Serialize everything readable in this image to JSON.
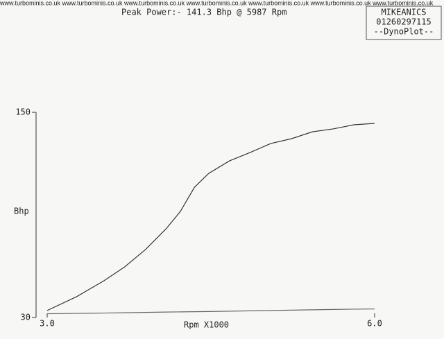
{
  "chart_data": {
    "type": "line",
    "header": "www.turbominis.co.uk www.turbominis.co.uk www.turbominis.co.uk www.turbominis.co.uk www.turbominis.co.uk www.turbominis.co.uk www.turbominis.co.uk",
    "title": "Peak Power:-  141.3 Bhp @   5987 Rpm",
    "stamp": [
      "MIKEANICS",
      "01260297115",
      "--DynoPlot--"
    ],
    "x_label": "Rpm X1000",
    "y_label": "Bhp",
    "x": [
      3.0,
      3.27,
      3.52,
      3.71,
      3.9,
      4.09,
      4.22,
      4.35,
      4.48,
      4.67,
      4.86,
      5.05,
      5.24,
      5.43,
      5.62,
      5.81,
      6.0
    ],
    "series": [
      {
        "color": "#333333",
        "values": [
          34.1,
          42.2,
          51.5,
          59.6,
          69.7,
          81.9,
          92.0,
          106.2,
          114.3,
          121.6,
          126.5,
          131.8,
          134.6,
          138.6,
          140.3,
          142.7,
          143.5
        ]
      },
      {
        "color": "#666666",
        "values": [
          32.2,
          32.4,
          32.6,
          32.8,
          33.0,
          33.2,
          33.3,
          33.4,
          33.5,
          33.7,
          33.9,
          34.1,
          34.3,
          34.5,
          34.7,
          34.9,
          35.0
        ]
      }
    ],
    "xlim": [
      3.0,
      6.0
    ],
    "xticks": [
      {
        "value": 3.0,
        "label": "3.0"
      },
      {
        "value": 6.0,
        "label": "6.0"
      }
    ],
    "ylim": [
      30,
      150
    ],
    "yticks": [
      30,
      150
    ]
  }
}
